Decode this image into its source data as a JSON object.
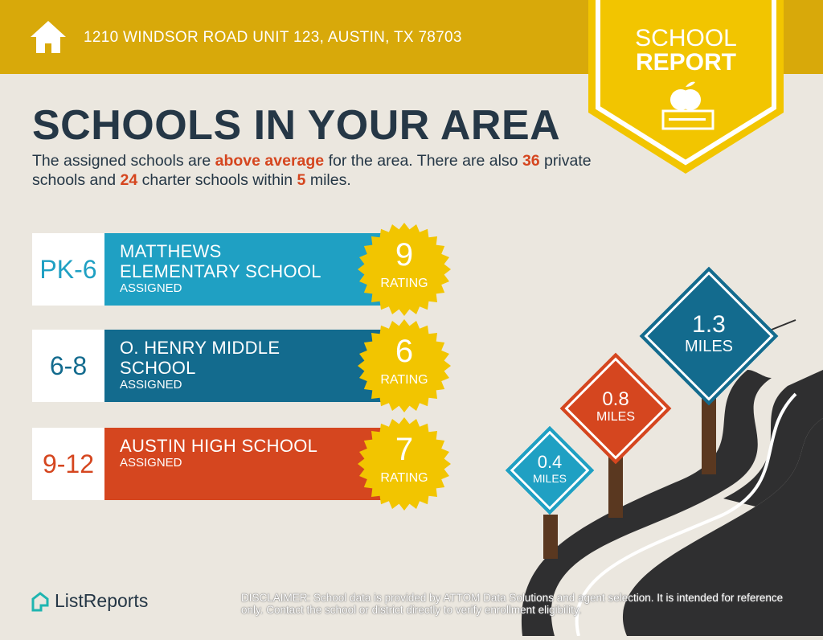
{
  "header": {
    "address": "1210 WINDSOR ROAD UNIT 123, AUSTIN, TX 78703",
    "icon": "home-icon"
  },
  "badge": {
    "line1": "SCHOOL",
    "line2": "REPORT",
    "icon": "apple-books-icon"
  },
  "title": "SCHOOLS IN YOUR AREA",
  "subtitle": {
    "p1": "The assigned schools are ",
    "h1": "above average",
    "p2": " for the area. There are also ",
    "h2": "36",
    "p3": " private schools and ",
    "h3": "24",
    "p4": " charter schools within ",
    "h4": "5",
    "p5": " miles."
  },
  "schools": [
    {
      "grades": "PK-6",
      "name": "MATTHEWS ELEMENTARY SCHOOL",
      "name_l1": "MATTHEWS",
      "name_l2": "ELEMENTARY SCHOOL",
      "status": "ASSIGNED",
      "rating": "9",
      "rating_label": "RATING",
      "color": "#1fa0c3"
    },
    {
      "grades": "6-8",
      "name": "O. HENRY MIDDLE SCHOOL",
      "name_l1": "O. HENRY MIDDLE",
      "name_l2": "SCHOOL",
      "status": "ASSIGNED",
      "rating": "6",
      "rating_label": "RATING",
      "color": "#136b8e"
    },
    {
      "grades": "9-12",
      "name": "AUSTIN HIGH SCHOOL",
      "name_l1": "AUSTIN HIGH SCHOOL",
      "name_l2": "",
      "status": "ASSIGNED",
      "rating": "7",
      "rating_label": "RATING",
      "color": "#d5461f"
    }
  ],
  "signs": [
    {
      "value": "0.4",
      "unit": "MILES",
      "color": "#1fa0c3"
    },
    {
      "value": "0.8",
      "unit": "MILES",
      "color": "#d5461f"
    },
    {
      "value": "1.3",
      "unit": "MILES",
      "color": "#136b8e"
    }
  ],
  "footer": {
    "logo": "ListReports",
    "disclaimer_label": "DISCLAIMER",
    "disclaimer": ": School data is provided by ATTOM Data Solutions and agent selection. It is intended for reference only. Contact the school or district directly to verify enrollment eligibility."
  },
  "colors": {
    "header": "#d8a90a",
    "badge": "#f2c500",
    "background": "#ebe7df",
    "text": "#253746",
    "accent": "#d5461f"
  }
}
